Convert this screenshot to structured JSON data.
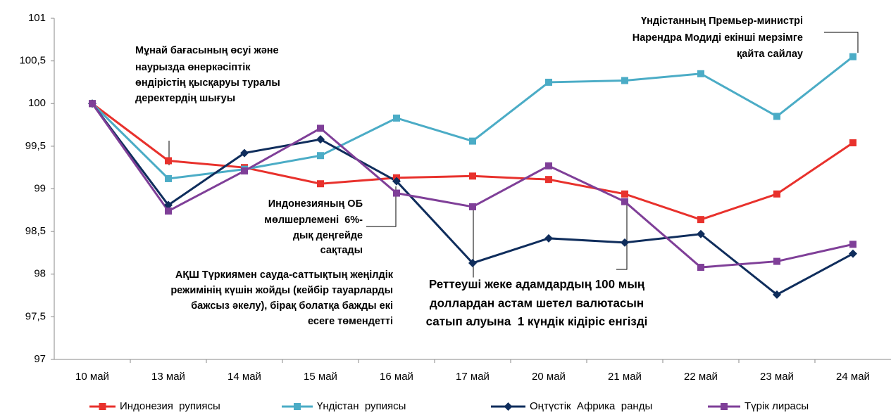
{
  "chart_data": {
    "type": "line",
    "categories": [
      "10 май",
      "13 май",
      "14 май",
      "15 май",
      "16 май",
      "17 май",
      "20 май",
      "21 май",
      "22 май",
      "23 май",
      "24 май"
    ],
    "series": [
      {
        "name": "Индонезия  рупиясы",
        "color": "#e8312c",
        "marker": "square",
        "values": [
          100,
          99.33,
          99.25,
          99.06,
          99.13,
          99.15,
          99.11,
          98.94,
          98.64,
          98.94,
          99.54
        ]
      },
      {
        "name": "Үндістан  рупиясы",
        "color": "#4bacc6",
        "marker": "square",
        "values": [
          100,
          99.12,
          99.23,
          99.39,
          99.83,
          99.56,
          100.25,
          100.27,
          100.35,
          99.85,
          100.55
        ]
      },
      {
        "name": "Оңтүстік  Африка  ранды",
        "color": "#0f2d5c",
        "marker": "diamond",
        "values": [
          100,
          98.81,
          99.42,
          99.58,
          99.09,
          98.13,
          98.42,
          98.37,
          98.47,
          97.76,
          98.24
        ]
      },
      {
        "name": "Түрік лирасы",
        "color": "#7f3f98",
        "marker": "square",
        "values": [
          100,
          98.74,
          99.21,
          99.71,
          98.95,
          98.79,
          99.27,
          98.85,
          98.08,
          98.15,
          98.35
        ]
      }
    ],
    "ylim": [
      97,
      101
    ],
    "yticks": [
      97,
      {
        "value": 97.5,
        "label": "97,5"
      },
      98,
      {
        "value": 98.5,
        "label": "98,5"
      },
      99,
      {
        "value": 99.5,
        "label": "99,5"
      },
      100,
      {
        "value": 100.5,
        "label": "100,5"
      },
      101
    ],
    "grid": false,
    "legend": "bottom",
    "annotations": [
      {
        "lines": [
          "Мұнай бағасының өсуі және",
          "наурызда өнеркәсіптік",
          "өндірістің қысқаруы туралы",
          "деректердің шығуы"
        ]
      },
      {
        "lines": [
          "Үндістанның Премьер-министрі",
          "Нарендра Модиді екінші мерзімге",
          "қайта сайлау"
        ]
      },
      {
        "lines": [
          "Индонезияның ОБ",
          "мөлшерлемені  6%-",
          "дық деңгейде",
          "сақтады"
        ]
      },
      {
        "lines": [
          "АҚШ Түркиямен сауда-саттықтың жеңілдік",
          "режимінің күшін жойды (кейбір тауарларды",
          "бажсыз әкелу), бірақ болатқа бажды екі",
          "есеге төмендетті"
        ]
      },
      {
        "lines": [
          "Реттеуші жеке адамдардың 100 мың",
          "доллардан астам шетел валютасын",
          "сатып алуына  1 күндік кідіріс енгізді"
        ]
      }
    ]
  }
}
